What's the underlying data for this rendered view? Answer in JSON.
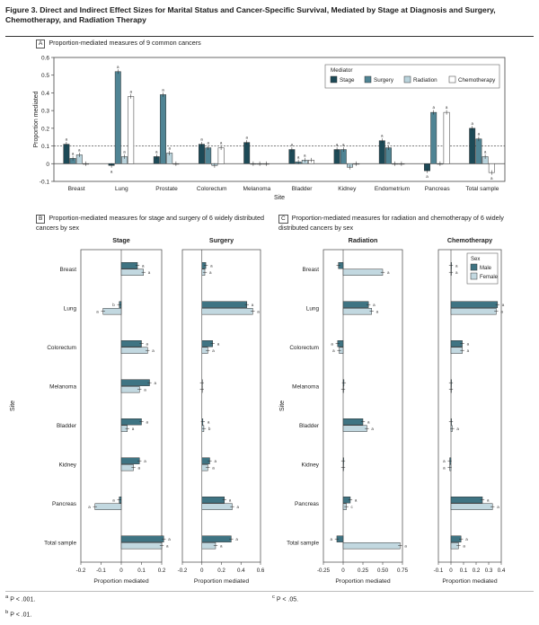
{
  "figure_title": "Figure 3. Direct and Indirect Effect Sizes for Marital Status and Cancer-Specific Survival, Mediated by Stage at Diagnosis and Surgery, Chemotherapy, and Radiation Therapy",
  "panel_a": {
    "letter": "A",
    "title": "Proportion-mediated measures of 9 common cancers"
  },
  "panel_b": {
    "letter": "B",
    "title": "Proportion-mediated measures for stage and surgery of 6 widely distributed cancers by sex"
  },
  "panel_c": {
    "letter": "C",
    "title": "Proportion-mediated measures for radiation and chemotherapy of 6 widely distributed cancers by sex"
  },
  "footnotes": {
    "a": "P < .001.",
    "b": "P < .01.",
    "c": "P < .05."
  },
  "colors": {
    "stage": "#1d4a57",
    "surgery": "#4f8494",
    "radiation": "#b9d3dc",
    "chemotherapy": "#ffffff",
    "male": "#3f7483",
    "female": "#c2d8e0"
  },
  "chart_data": [
    {
      "id": "A",
      "type": "bar",
      "title": "Proportion-mediated measures of 9 common cancers",
      "xlabel": "Site",
      "ylabel": "Proportion mediated",
      "ylim": [
        -0.1,
        0.6
      ],
      "yticks": [
        "0.6",
        "0.5",
        "0.4",
        "0.3",
        "0.2",
        "0.1",
        "0",
        "-0.1"
      ],
      "reference_line": 0.1,
      "legend_title": "Mediator",
      "legend_position": "top-right",
      "categories": [
        "Breast",
        "Lung",
        "Prostate",
        "Colorectum",
        "Melanoma",
        "Bladder",
        "Kidney",
        "Endometrium",
        "Pancreas",
        "Total sample"
      ],
      "series": [
        {
          "name": "Stage",
          "color": "#1d4a57",
          "values": [
            0.11,
            -0.01,
            0.04,
            0.11,
            0.12,
            0.08,
            0.08,
            0.13,
            -0.04,
            0.2
          ],
          "sig": [
            "a",
            "a",
            "a",
            "a",
            "a",
            "a",
            "a",
            "a",
            "a",
            "a"
          ]
        },
        {
          "name": "Surgery",
          "color": "#4f8494",
          "values": [
            0.03,
            0.52,
            0.39,
            0.09,
            0.0,
            0.01,
            0.08,
            0.09,
            0.29,
            0.14
          ],
          "sig": [
            "a",
            "a",
            "a",
            "a",
            "",
            "a",
            "a",
            "a",
            "a",
            "a"
          ]
        },
        {
          "name": "Radiation",
          "color": "#b9d3dc",
          "values": [
            0.05,
            0.04,
            0.06,
            -0.01,
            0.0,
            0.02,
            -0.02,
            0.0,
            0.0,
            0.04
          ],
          "sig": [
            "a",
            "a",
            "a",
            "",
            "",
            "a",
            "",
            "",
            "",
            "a"
          ]
        },
        {
          "name": "Chemotherapy",
          "color": "#ffffff",
          "values": [
            0.0,
            0.38,
            0.0,
            0.09,
            0.0,
            0.02,
            0.0,
            0.0,
            0.29,
            -0.05
          ],
          "sig": [
            "",
            "a",
            "",
            "a",
            "",
            "",
            "",
            "",
            "a",
            "a"
          ]
        }
      ]
    },
    {
      "id": "B-stage",
      "type": "bar",
      "orientation": "horizontal",
      "title": "Stage",
      "xlabel": "Proportion mediated",
      "ylabel": "Site",
      "xlim": [
        -0.2,
        0.2
      ],
      "xticks": [
        "-0.2",
        "-0.1",
        "0",
        "0.1",
        "0.2"
      ],
      "categories": [
        "Breast",
        "Lung",
        "Colorectum",
        "Melanoma",
        "Bladder",
        "Kidney",
        "Pancreas",
        "Total sample"
      ],
      "series": [
        {
          "name": "Male",
          "values": [
            0.08,
            -0.01,
            0.1,
            0.14,
            0.1,
            0.09,
            -0.01,
            0.21
          ],
          "sig": [
            "a",
            "b",
            "a",
            "a",
            "a",
            "a",
            "a",
            "a"
          ]
        },
        {
          "name": "Female",
          "values": [
            0.11,
            -0.09,
            0.13,
            0.09,
            0.03,
            0.06,
            -0.13,
            0.2
          ],
          "sig": [
            "a",
            "a",
            "a",
            "a",
            "a",
            "a",
            "a",
            "a"
          ]
        }
      ]
    },
    {
      "id": "B-surgery",
      "type": "bar",
      "orientation": "horizontal",
      "title": "Surgery",
      "xlabel": "Proportion mediated",
      "xlim": [
        -0.2,
        0.6
      ],
      "xticks": [
        "-0.2",
        "0",
        "0.2",
        "0.4",
        "0.6"
      ],
      "categories": [
        "Breast",
        "Lung",
        "Colorectum",
        "Melanoma",
        "Bladder",
        "Kidney",
        "Pancreas",
        "Total sample"
      ],
      "series": [
        {
          "name": "Male",
          "values": [
            0.04,
            0.46,
            0.11,
            0.0,
            0.01,
            0.08,
            0.23,
            0.3
          ],
          "sig": [
            "a",
            "a",
            "a",
            "",
            "a",
            "a",
            "a",
            "a"
          ]
        },
        {
          "name": "Female",
          "values": [
            0.03,
            0.52,
            0.06,
            0.0,
            0.02,
            0.06,
            0.31,
            0.14
          ],
          "sig": [
            "a",
            "a",
            "a",
            "",
            "b",
            "a",
            "a",
            "a"
          ]
        }
      ]
    },
    {
      "id": "C-radiation",
      "type": "bar",
      "orientation": "horizontal",
      "title": "Radiation",
      "xlabel": "Proportion mediated",
      "ylabel": "Site",
      "xlim": [
        -0.25,
        0.75
      ],
      "xticks": [
        "-0.25",
        "0",
        "0.25",
        "0.50",
        "0.75"
      ],
      "categories": [
        "Breast",
        "Lung",
        "Colorectum",
        "Melanoma",
        "Bladder",
        "Kidney",
        "Pancreas",
        "Total sample"
      ],
      "series": [
        {
          "name": "Male",
          "values": [
            -0.06,
            0.32,
            -0.07,
            0.01,
            0.25,
            0.0,
            0.09,
            -0.08
          ],
          "sig": [
            "",
            "a",
            "a",
            "",
            "a",
            "",
            "a",
            "a"
          ]
        },
        {
          "name": "Female",
          "values": [
            0.5,
            0.36,
            -0.05,
            0.0,
            0.3,
            0.0,
            0.04,
            0.72
          ],
          "sig": [
            "a",
            "a",
            "a",
            "",
            "a",
            "",
            "c",
            "a"
          ]
        }
      ]
    },
    {
      "id": "C-chemotherapy",
      "type": "bar",
      "orientation": "horizontal",
      "title": "Chemotherapy",
      "xlabel": "Proportion mediated",
      "xlim": [
        -0.1,
        0.4
      ],
      "xticks": [
        "-0.1",
        "0",
        "0.1",
        "0.2",
        "0.3",
        "0.4"
      ],
      "legend_title": "Sex",
      "legend_entries": [
        "Male",
        "Female"
      ],
      "legend_position": "top-right",
      "categories": [
        "Breast",
        "Lung",
        "Colorectum",
        "Melanoma",
        "Bladder",
        "Kidney",
        "Pancreas",
        "Total sample"
      ],
      "series": [
        {
          "name": "Male",
          "values": [
            0.0,
            0.37,
            0.09,
            0.0,
            0.0,
            -0.01,
            0.25,
            0.08
          ],
          "sig": [
            "a",
            "a",
            "a",
            "",
            "",
            "a",
            "a",
            "a"
          ]
        },
        {
          "name": "Female",
          "values": [
            0.0,
            0.36,
            0.09,
            0.0,
            0.01,
            -0.01,
            0.33,
            0.06
          ],
          "sig": [
            "a",
            "a",
            "a",
            "",
            "a",
            "a",
            "a",
            "a"
          ]
        }
      ]
    }
  ]
}
